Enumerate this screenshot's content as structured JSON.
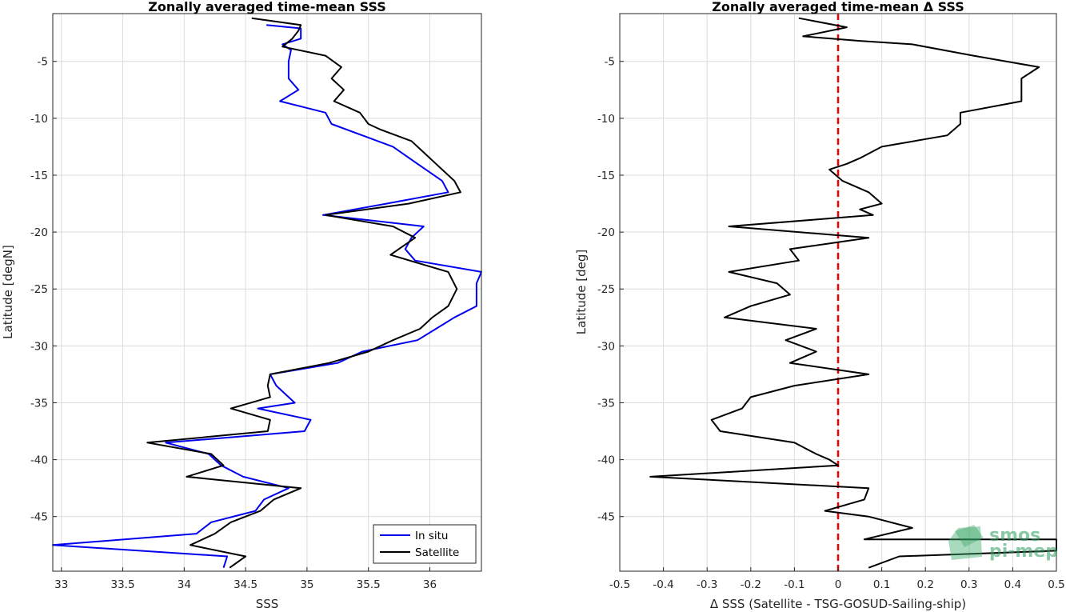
{
  "chart_data": [
    {
      "type": "line",
      "title": "Zonally averaged time-mean SSS",
      "xlabel": "SSS",
      "ylabel": "Latitude [degN]",
      "xlim": [
        32.93,
        36.42
      ],
      "ylim": [
        -49.8,
        -0.8
      ],
      "xticks": [
        "33",
        "33.5",
        "34",
        "34.5",
        "35",
        "35.5",
        "36"
      ],
      "yticks": [
        "-5",
        "-10",
        "-15",
        "-20",
        "-25",
        "-30",
        "-35",
        "-40",
        "-45"
      ],
      "grid": true,
      "legend": {
        "position": "bottom-right",
        "entries": [
          "In situ",
          "Satellite"
        ]
      },
      "series": [
        {
          "name": "In situ",
          "color": "#0000ee",
          "points": [
            [
              34.67,
              -1.8
            ],
            [
              34.95,
              -2.1
            ],
            [
              34.95,
              -3.0
            ],
            [
              34.8,
              -3.5
            ],
            [
              34.87,
              -4.0
            ],
            [
              34.85,
              -5.0
            ],
            [
              34.85,
              -6.5
            ],
            [
              34.93,
              -7.5
            ],
            [
              34.78,
              -8.5
            ],
            [
              35.15,
              -9.5
            ],
            [
              35.2,
              -10.5
            ],
            [
              35.45,
              -11.5
            ],
            [
              35.7,
              -12.5
            ],
            [
              35.9,
              -14.0
            ],
            [
              36.1,
              -15.5
            ],
            [
              36.15,
              -16.5
            ],
            [
              35.65,
              -17.5
            ],
            [
              35.13,
              -18.5
            ],
            [
              35.95,
              -19.5
            ],
            [
              35.85,
              -20.5
            ],
            [
              35.8,
              -21.5
            ],
            [
              35.88,
              -22.5
            ],
            [
              36.42,
              -23.5
            ],
            [
              36.38,
              -24.5
            ],
            [
              36.38,
              -26.5
            ],
            [
              36.2,
              -27.5
            ],
            [
              36.05,
              -28.5
            ],
            [
              35.9,
              -29.5
            ],
            [
              35.45,
              -30.5
            ],
            [
              35.25,
              -31.5
            ],
            [
              34.7,
              -32.5
            ],
            [
              34.75,
              -33.5
            ],
            [
              34.9,
              -35.0
            ],
            [
              34.6,
              -35.5
            ],
            [
              35.03,
              -36.5
            ],
            [
              34.98,
              -37.5
            ],
            [
              33.85,
              -38.5
            ],
            [
              34.2,
              -39.5
            ],
            [
              34.3,
              -40.5
            ],
            [
              34.48,
              -41.5
            ],
            [
              34.85,
              -42.5
            ],
            [
              34.65,
              -43.5
            ],
            [
              34.58,
              -44.5
            ],
            [
              34.22,
              -45.5
            ],
            [
              34.1,
              -46.5
            ],
            [
              32.93,
              -47.5
            ],
            [
              34.35,
              -48.5
            ],
            [
              34.32,
              -49.5
            ]
          ]
        },
        {
          "name": "Satellite",
          "color": "#000000",
          "points": [
            [
              34.55,
              -1.2
            ],
            [
              34.95,
              -1.8
            ],
            [
              34.93,
              -2.3
            ],
            [
              34.88,
              -3.0
            ],
            [
              34.8,
              -3.7
            ],
            [
              35.15,
              -4.5
            ],
            [
              35.28,
              -5.5
            ],
            [
              35.2,
              -6.5
            ],
            [
              35.3,
              -7.5
            ],
            [
              35.22,
              -8.5
            ],
            [
              35.43,
              -9.5
            ],
            [
              35.5,
              -10.5
            ],
            [
              35.6,
              -11.0
            ],
            [
              35.85,
              -12.0
            ],
            [
              35.95,
              -13.0
            ],
            [
              36.05,
              -14.0
            ],
            [
              36.2,
              -15.5
            ],
            [
              36.25,
              -16.5
            ],
            [
              35.83,
              -17.5
            ],
            [
              35.15,
              -18.5
            ],
            [
              35.7,
              -19.5
            ],
            [
              35.88,
              -20.5
            ],
            [
              35.68,
              -22.0
            ],
            [
              36.15,
              -23.5
            ],
            [
              36.22,
              -25.0
            ],
            [
              36.15,
              -26.5
            ],
            [
              36.02,
              -27.5
            ],
            [
              35.92,
              -28.5
            ],
            [
              35.7,
              -29.5
            ],
            [
              35.5,
              -30.5
            ],
            [
              35.18,
              -31.5
            ],
            [
              34.7,
              -32.5
            ],
            [
              34.68,
              -33.5
            ],
            [
              34.7,
              -34.5
            ],
            [
              34.38,
              -35.5
            ],
            [
              34.7,
              -36.5
            ],
            [
              34.68,
              -37.5
            ],
            [
              33.7,
              -38.5
            ],
            [
              34.22,
              -39.5
            ],
            [
              34.32,
              -40.5
            ],
            [
              34.02,
              -41.5
            ],
            [
              34.95,
              -42.5
            ],
            [
              34.73,
              -43.5
            ],
            [
              34.62,
              -44.5
            ],
            [
              34.38,
              -45.5
            ],
            [
              34.25,
              -46.5
            ],
            [
              34.05,
              -47.5
            ],
            [
              34.5,
              -48.5
            ],
            [
              34.37,
              -49.5
            ]
          ]
        }
      ]
    },
    {
      "type": "line",
      "title": "Zonally averaged time-mean Δ SSS",
      "xlabel": "Δ SSS (Satellite - TSG-GOSUD-Sailing-ship)",
      "ylabel": "Latitude [deg]",
      "xlim": [
        -0.5,
        0.5
      ],
      "ylim": [
        -49.8,
        -0.8
      ],
      "xticks": [
        "-0.5",
        "-0.4",
        "-0.3",
        "-0.2",
        "-0.1",
        "0",
        "0.1",
        "0.2",
        "0.3",
        "0.4",
        "0.5"
      ],
      "yticks": [
        "-5",
        "-10",
        "-15",
        "-20",
        "-25",
        "-30",
        "-35",
        "-40",
        "-45"
      ],
      "grid": true,
      "zero_line": {
        "value": 0,
        "color": "#ee0000",
        "style": "dashed"
      },
      "series": [
        {
          "color": "#000000",
          "points": [
            [
              -0.09,
              -1.2
            ],
            [
              0.02,
              -2.0
            ],
            [
              -0.08,
              -2.8
            ],
            [
              0.05,
              -3.2
            ],
            [
              0.17,
              -3.5
            ],
            [
              0.31,
              -4.5
            ],
            [
              0.46,
              -5.5
            ],
            [
              0.42,
              -6.5
            ],
            [
              0.42,
              -8.5
            ],
            [
              0.28,
              -9.5
            ],
            [
              0.28,
              -10.5
            ],
            [
              0.25,
              -11.5
            ],
            [
              0.1,
              -12.5
            ],
            [
              0.05,
              -13.5
            ],
            [
              0.02,
              -14.0
            ],
            [
              -0.02,
              -14.5
            ],
            [
              0.01,
              -15.5
            ],
            [
              0.07,
              -16.5
            ],
            [
              0.1,
              -17.5
            ],
            [
              0.05,
              -18.0
            ],
            [
              0.08,
              -18.5
            ],
            [
              -0.25,
              -19.5
            ],
            [
              0.07,
              -20.5
            ],
            [
              -0.11,
              -21.5
            ],
            [
              -0.09,
              -22.5
            ],
            [
              -0.25,
              -23.5
            ],
            [
              -0.14,
              -24.5
            ],
            [
              -0.11,
              -25.5
            ],
            [
              -0.2,
              -26.5
            ],
            [
              -0.26,
              -27.5
            ],
            [
              -0.05,
              -28.5
            ],
            [
              -0.12,
              -29.5
            ],
            [
              -0.05,
              -30.5
            ],
            [
              -0.11,
              -31.5
            ],
            [
              0.07,
              -32.5
            ],
            [
              -0.1,
              -33.5
            ],
            [
              -0.2,
              -34.5
            ],
            [
              -0.22,
              -35.5
            ],
            [
              -0.29,
              -36.5
            ],
            [
              -0.27,
              -37.5
            ],
            [
              -0.1,
              -38.5
            ],
            [
              -0.05,
              -39.5
            ],
            [
              -0.02,
              -40.0
            ],
            [
              0.0,
              -40.5
            ],
            [
              -0.43,
              -41.5
            ],
            [
              0.07,
              -42.5
            ],
            [
              0.06,
              -43.5
            ],
            [
              -0.03,
              -44.5
            ],
            [
              0.07,
              -45.0
            ],
            [
              0.17,
              -46.0
            ],
            [
              0.06,
              -47.0
            ],
            [
              0.5,
              -47.0
            ],
            [
              0.5,
              -48.0
            ],
            [
              0.14,
              -48.5
            ],
            [
              0.07,
              -49.5
            ]
          ]
        }
      ]
    }
  ],
  "watermark": {
    "line1": "smos",
    "line2": "pi-mep"
  }
}
